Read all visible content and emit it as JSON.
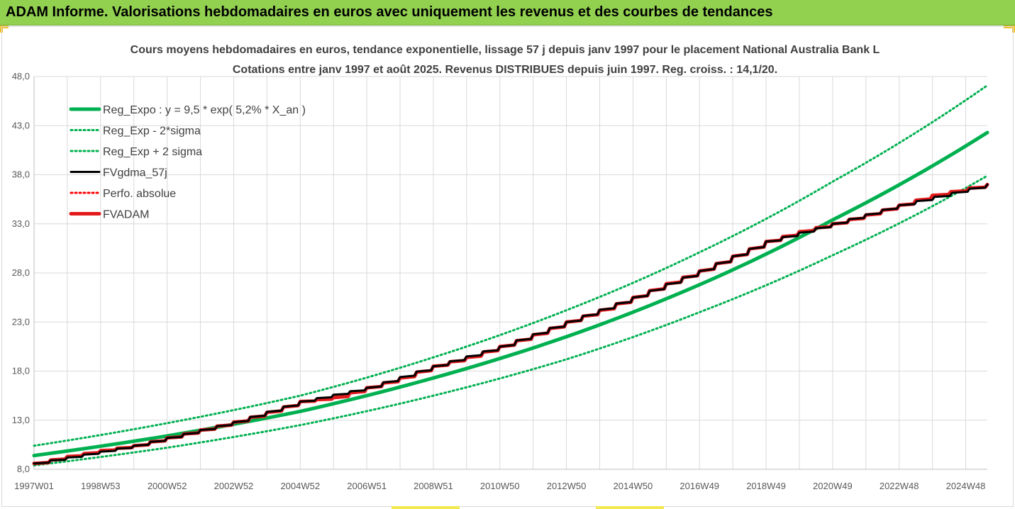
{
  "banner": {
    "title": "ADAM Informe. Valorisations hebdomadaires en euros avec uniquement les revenus et des courbes de tendances"
  },
  "colors": {
    "banner_bg": "#92d050",
    "trend_green": "#00b050",
    "adam_red": "#e31a1c",
    "perfo_red": "#ff0000",
    "fvgdma_black": "#000000",
    "grid": "#d9d9d9"
  },
  "chart_data": {
    "type": "line",
    "title": "Cours moyens hebdomadaires en euros, tendance exponentielle, lissage 57 j depuis janv 1997 pour le placement National Australia Bank L",
    "subtitle": "Cotations entre janv 1997 et août 2025. Revenus DISTRIBUES depuis juin 1997. Reg. croiss. : 14,1/20.",
    "ylim": [
      8,
      48
    ],
    "y_ticks": [
      "8,0",
      "13,0",
      "18,0",
      "23,0",
      "28,0",
      "33,0",
      "38,0",
      "43,0",
      "48,0"
    ],
    "y_tick_values": [
      8,
      13,
      18,
      23,
      28,
      33,
      38,
      43,
      48
    ],
    "x_range_years": [
      1997.0,
      2025.65
    ],
    "x_ticks": [
      {
        "label": "1997W01",
        "year": 1997.0
      },
      {
        "label": "1998W53",
        "year": 1999.0
      },
      {
        "label": "2000W52",
        "year": 2001.0
      },
      {
        "label": "2002W52",
        "year": 2003.0
      },
      {
        "label": "2004W52",
        "year": 2005.0
      },
      {
        "label": "2006W51",
        "year": 2007.0
      },
      {
        "label": "2008W51",
        "year": 2009.0
      },
      {
        "label": "2010W50",
        "year": 2011.0
      },
      {
        "label": "2012W50",
        "year": 2013.0
      },
      {
        "label": "2014W50",
        "year": 2015.0
      },
      {
        "label": "2016W49",
        "year": 2017.0
      },
      {
        "label": "2018W49",
        "year": 2019.0
      },
      {
        "label": "2020W49",
        "year": 2021.0
      },
      {
        "label": "2022W48",
        "year": 2023.0
      },
      {
        "label": "2024W48",
        "year": 2025.0
      }
    ],
    "grid": true,
    "legend_position": "top-left",
    "series": [
      {
        "name": "Reg_Expo : y = 9,5 * exp( 5,2% *  X_an )",
        "style": "solid",
        "color": "#00b050",
        "width": 5,
        "x": [
          1997.0,
          2001.0,
          2005.0,
          2009.0,
          2013.0,
          2017.0,
          2021.0,
          2025.65
        ],
        "y": [
          9.4,
          11.4,
          13.9,
          17.3,
          21.5,
          26.8,
          33.4,
          42.3
        ]
      },
      {
        "name": "Reg_Exp - 2*sigma",
        "style": "dotted",
        "color": "#00b050",
        "width": 3,
        "x": [
          1997.0,
          2001.0,
          2005.0,
          2009.0,
          2013.0,
          2017.0,
          2021.0,
          2025.65
        ],
        "y": [
          8.4,
          10.2,
          12.5,
          15.5,
          19.2,
          24.0,
          29.8,
          37.9
        ]
      },
      {
        "name": "Reg_Exp + 2 sigma",
        "style": "dotted",
        "color": "#00b050",
        "width": 3,
        "x": [
          1997.0,
          2001.0,
          2005.0,
          2009.0,
          2013.0,
          2017.0,
          2021.0,
          2025.65
        ],
        "y": [
          10.4,
          12.7,
          15.5,
          19.4,
          24.2,
          30.1,
          37.3,
          47.1
        ]
      },
      {
        "name": "FVgdma_57j",
        "style": "solid",
        "color": "#000000",
        "width": 3,
        "x": [
          1997.0,
          2000.0,
          2003.0,
          2005.0,
          2007.0,
          2009.0,
          2011.0,
          2013.0,
          2015.0,
          2017.0,
          2019.0,
          2021.0,
          2023.0,
          2025.65
        ],
        "y": [
          8.6,
          10.4,
          12.8,
          14.9,
          16.3,
          18.5,
          20.5,
          23.0,
          25.5,
          28.2,
          31.2,
          33.0,
          34.9,
          37.0
        ]
      },
      {
        "name": "Perfo. absolue",
        "style": "dotted",
        "color": "#ff0000",
        "width": 3,
        "x": [],
        "y": []
      },
      {
        "name": "FVADAM",
        "style": "solid",
        "color": "#e31a1c",
        "width": 5,
        "x": [
          1997.0,
          1998.0,
          1999.0,
          2000.0,
          2001.0,
          2002.0,
          2003.0,
          2004.0,
          2005.0,
          2006.0,
          2007.0,
          2008.0,
          2009.0,
          2010.0,
          2011.0,
          2012.0,
          2013.0,
          2014.0,
          2015.0,
          2016.0,
          2017.0,
          2018.0,
          2019.0,
          2020.0,
          2021.0,
          2022.0,
          2023.0,
          2024.0,
          2025.65
        ],
        "y": [
          8.6,
          9.3,
          9.9,
          10.4,
          11.2,
          12.0,
          12.8,
          13.8,
          14.9,
          15.3,
          16.3,
          17.3,
          18.5,
          19.4,
          20.5,
          21.7,
          23.0,
          24.2,
          25.5,
          26.9,
          28.2,
          29.7,
          31.2,
          32.2,
          33.0,
          33.9,
          34.9,
          35.9,
          37.0
        ]
      }
    ]
  }
}
